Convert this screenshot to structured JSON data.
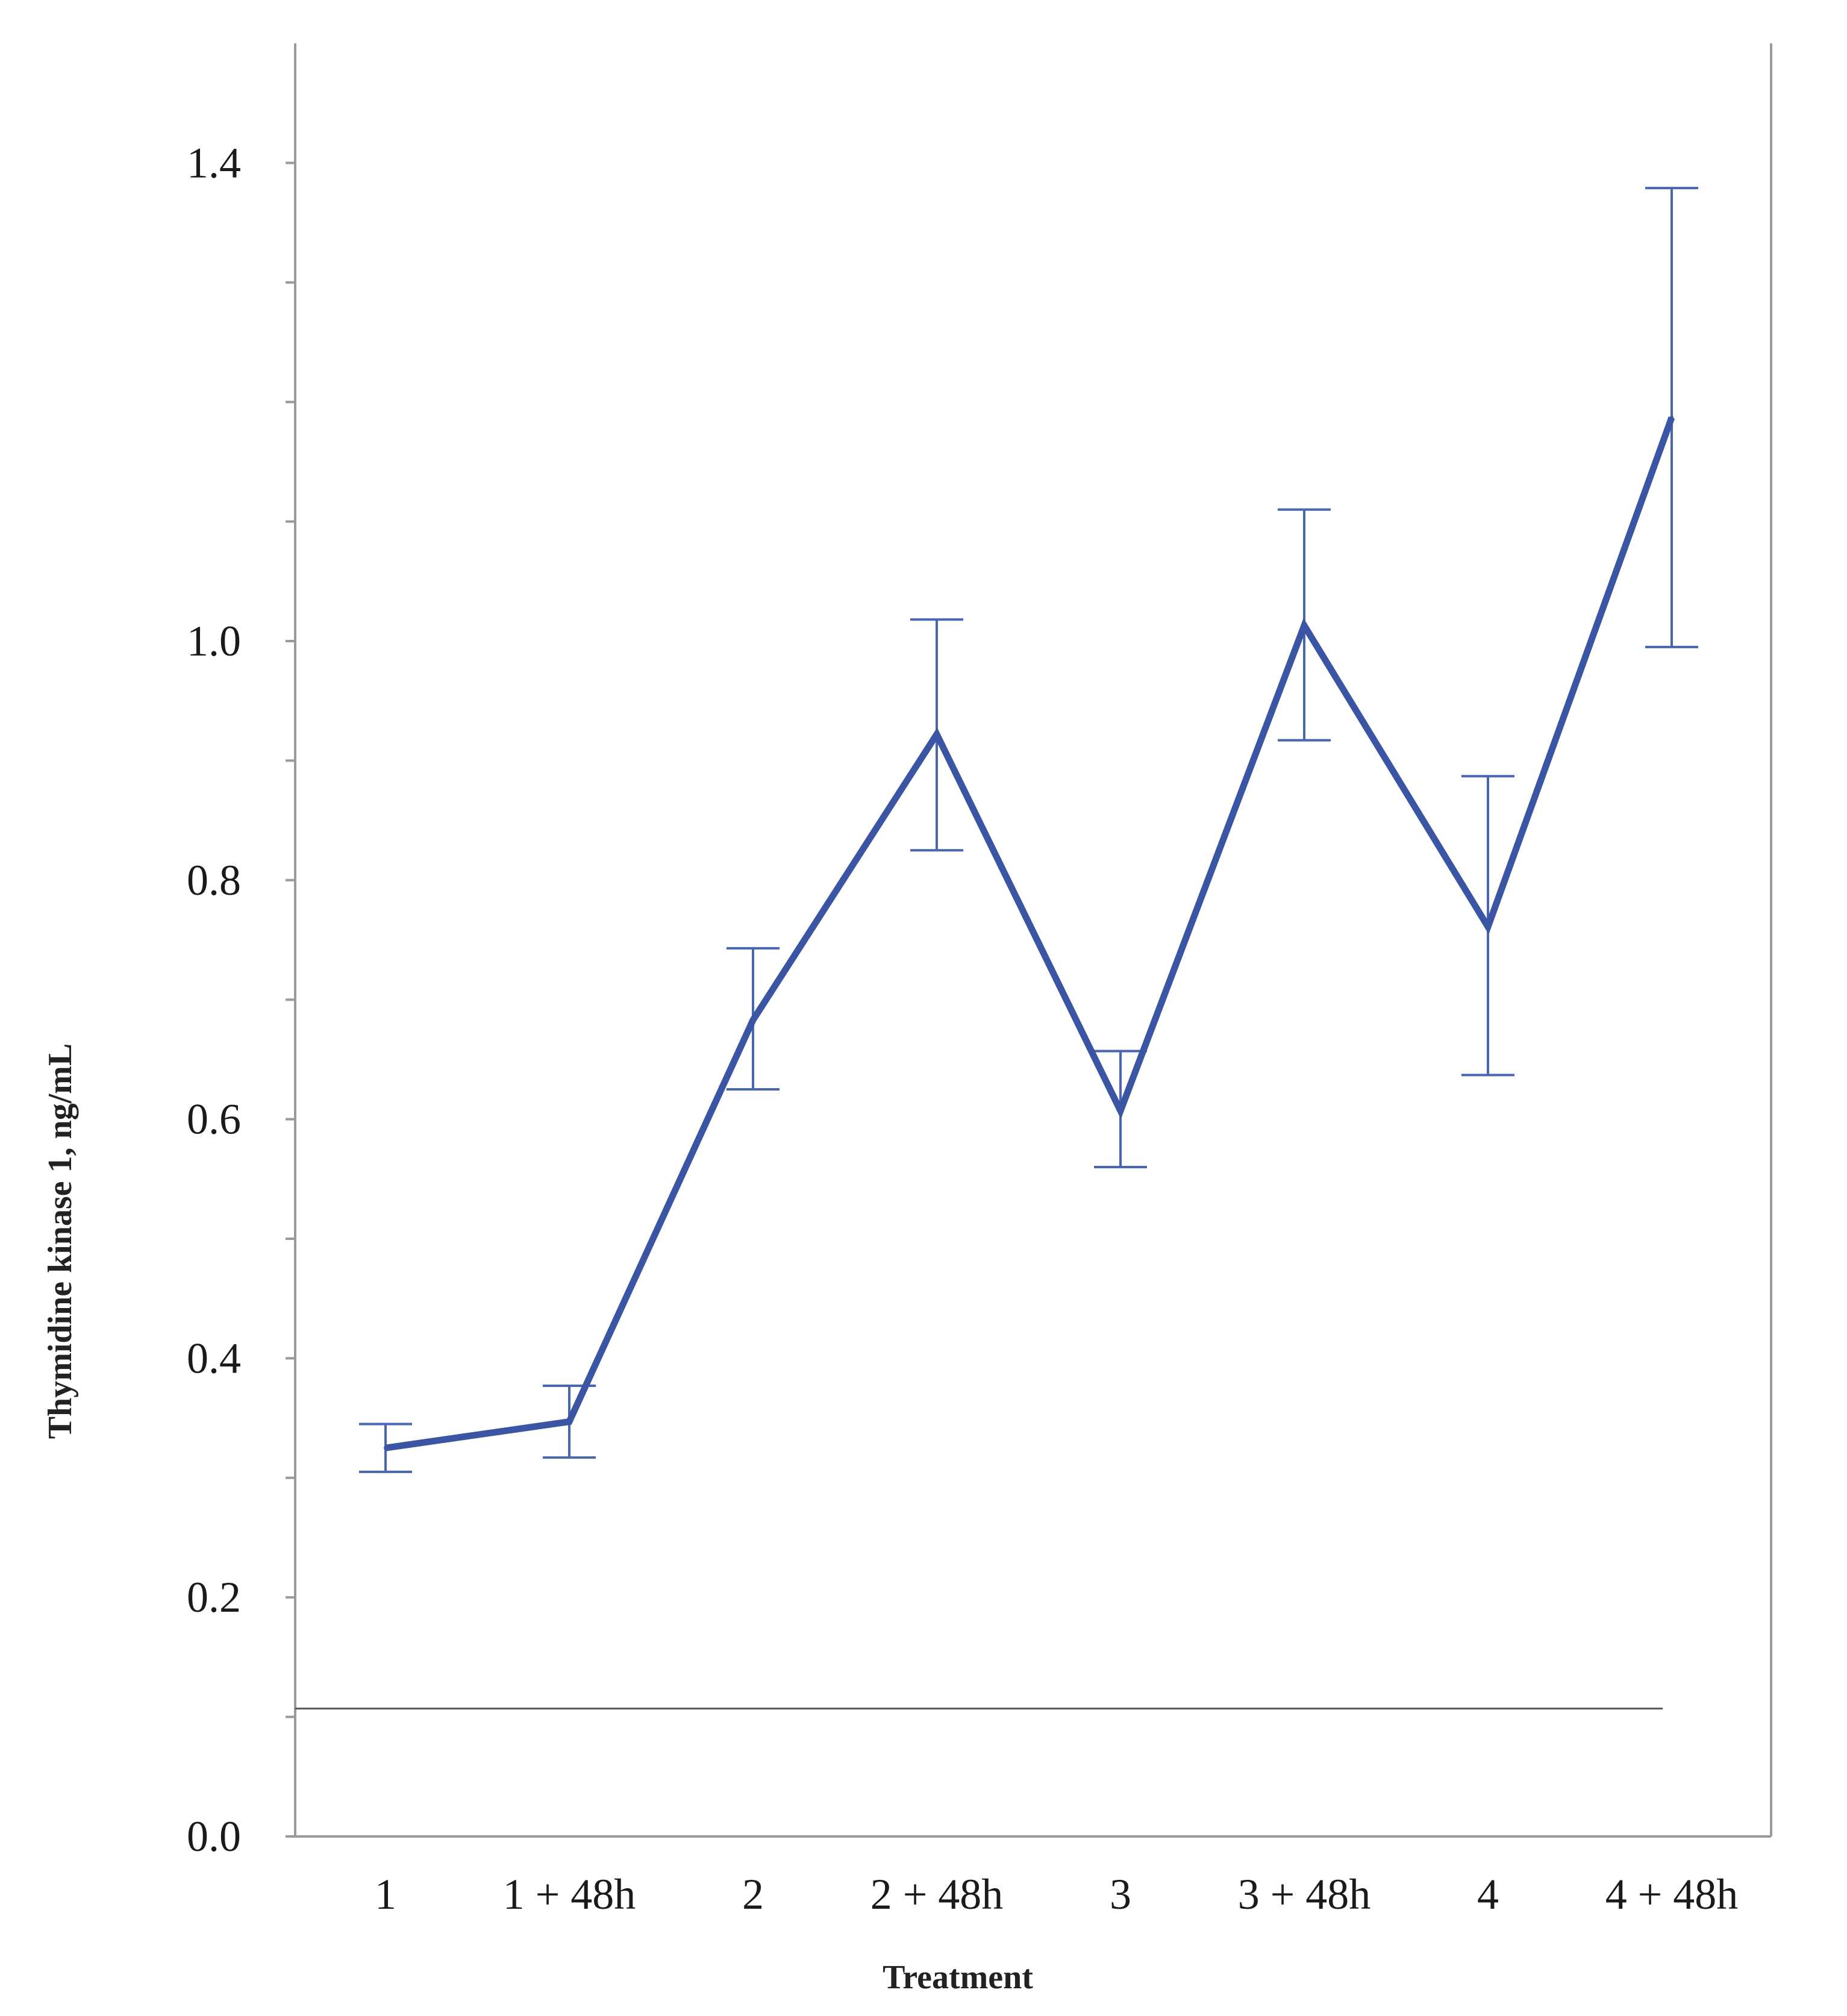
{
  "chart_data": {
    "type": "line",
    "title": "",
    "xlabel": "Treatment",
    "ylabel": "Thymidine kinase 1, ng/mL",
    "categories": [
      "1",
      "1 + 48h",
      "2",
      "2 + 48h",
      "3",
      "3 + 48h",
      "4",
      "4 + 48h"
    ],
    "series": [
      {
        "values": [
          0.325,
          0.347,
          0.683,
          0.922,
          0.607,
          1.013,
          0.761,
          1.187
        ],
        "error_upper": [
          0.345,
          0.377,
          0.743,
          1.018,
          0.657,
          1.11,
          0.887,
          1.379
        ],
        "error_lower": [
          0.305,
          0.317,
          0.625,
          0.825,
          0.56,
          0.917,
          0.637,
          0.995
        ]
      }
    ],
    "reference_line": 0.107,
    "ylim": [
      0.0,
      1.5
    ],
    "yticks": [
      0.0,
      0.2,
      0.4,
      0.6,
      0.8,
      1.0,
      1.4
    ],
    "y_minor_ticks": [
      0.1,
      0.3,
      0.5,
      0.7,
      0.9,
      1.1,
      1.2,
      1.3
    ],
    "ytick_labels": [
      "0.0",
      "0.2",
      "0.4",
      "0.6",
      "0.8",
      "1.0",
      "1.4"
    ],
    "grid": false,
    "legend": "none",
    "colors": {
      "line": "#3A55A4",
      "error_bars": "#4A66B0",
      "axis": "#9a9a9a",
      "reference_line": "#555555"
    }
  }
}
